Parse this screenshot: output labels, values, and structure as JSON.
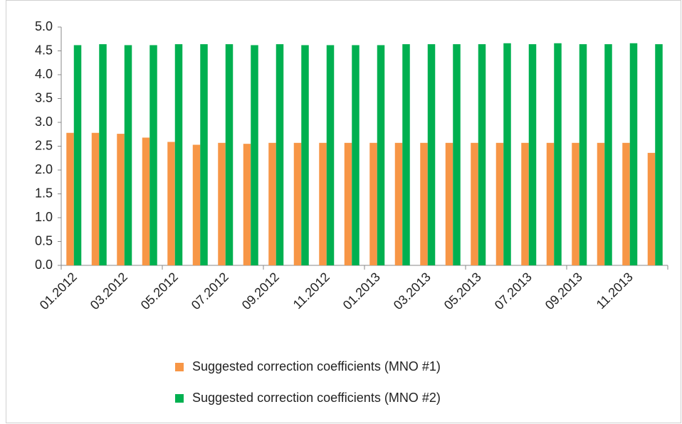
{
  "chart_data": {
    "type": "bar",
    "categories": [
      "01.2012",
      null,
      "03.2012",
      null,
      "05.2012",
      null,
      "07.2012",
      null,
      "09.2012",
      null,
      "11.2012",
      null,
      "01.2013",
      null,
      "03.2013",
      null,
      "05.2013",
      null,
      "07.2013",
      null,
      "09.2013",
      null,
      "11.2013",
      null
    ],
    "series": [
      {
        "name": "Suggested correction coefficients (MNO #1)",
        "color": "#f79646",
        "values": [
          2.78,
          2.78,
          2.76,
          2.68,
          2.59,
          2.53,
          2.57,
          2.55,
          2.57,
          2.57,
          2.57,
          2.57,
          2.57,
          2.57,
          2.57,
          2.57,
          2.57,
          2.57,
          2.57,
          2.57,
          2.57,
          2.57,
          2.57,
          2.36
        ]
      },
      {
        "name": "Suggested correction coefficients (MNO #2)",
        "color": "#00b050",
        "values": [
          4.62,
          4.64,
          4.62,
          4.62,
          4.64,
          4.64,
          4.64,
          4.62,
          4.64,
          4.62,
          4.62,
          4.62,
          4.62,
          4.64,
          4.64,
          4.64,
          4.64,
          4.66,
          4.64,
          4.66,
          4.64,
          4.64,
          4.66,
          4.64
        ]
      }
    ],
    "ylim": [
      0,
      5
    ],
    "yticks": [
      {
        "value": 0,
        "label": "0.0"
      },
      0.5,
      {
        "value": 1,
        "label": "1.0"
      },
      1.5,
      {
        "value": 2,
        "label": "2.0"
      },
      2.5,
      {
        "value": 3,
        "label": "3.0"
      },
      3.5,
      {
        "value": 4,
        "label": "4.0"
      },
      4.5,
      {
        "value": 5,
        "label": "5.0"
      }
    ],
    "grid": false,
    "legend": "bottom"
  }
}
